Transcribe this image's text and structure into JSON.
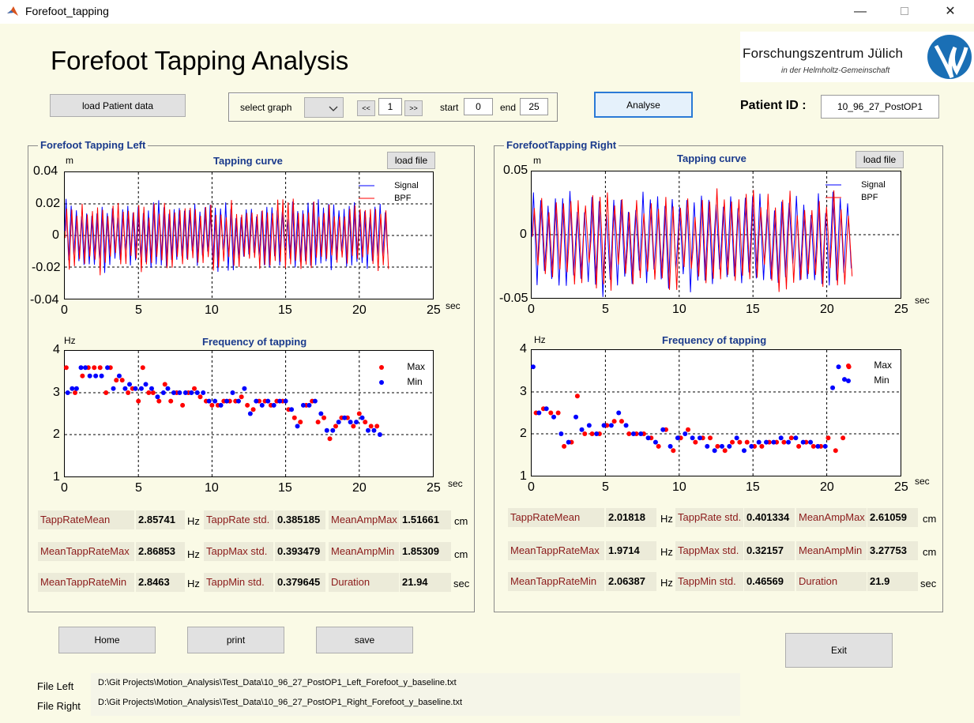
{
  "window": {
    "title": "Forefoot_tapping",
    "minimize_glyph": "—",
    "close_glyph": "✕"
  },
  "header": {
    "title": "Forefoot Tapping Analysis",
    "logo_line1": "Forschungszentrum Jülich",
    "logo_line2": "in der Helmholtz-Gemeinschaft"
  },
  "toolbar": {
    "load_patient": "load Patient data",
    "select_graph": "select graph",
    "prev": "<<",
    "page": "1",
    "next": ">>",
    "start_label": "start",
    "start_value": "0",
    "end_label": "end",
    "end_value": "25",
    "analyse": "Analyse",
    "patient_id_label": "Patient  ID :",
    "patient_id_value": "10_96_27_PostOP1"
  },
  "left": {
    "panel_title": "Forefoot Tapping Left",
    "load_file": "load file",
    "tapping_title": "Tapping curve",
    "tapping_unit": "m",
    "tapping_yticks": [
      "0.04",
      "0.02",
      "0",
      "-0.02",
      "-0.04"
    ],
    "xticks": [
      "0",
      "5",
      "10",
      "15",
      "20",
      "25"
    ],
    "x_unit": "sec",
    "legend_signal": "Signal",
    "legend_bpf": "BPF",
    "freq_title": "Frequency of tapping",
    "freq_unit": "Hz",
    "freq_yticks": [
      "4",
      "3",
      "2",
      "1"
    ],
    "legend_max": "Max",
    "legend_min": "Min",
    "stats": {
      "tapp_rate_mean_label": "TappRateMean",
      "tapp_rate_mean": "2.85741",
      "hz1": "Hz",
      "tapp_rate_std_label": "TappRate std.",
      "tapp_rate_std": "0.385185",
      "mean_amp_max_label": "MeanAmpMax",
      "mean_amp_max": "1.51661",
      "cm1": "cm",
      "mean_tapp_rate_max_label": "MeanTappRateMax",
      "mean_tapp_rate_max": "2.86853",
      "hz2": "Hz",
      "tapp_max_std_label": "TappMax std.",
      "tapp_max_std": "0.393479",
      "mean_amp_min_label": "MeanAmpMin",
      "mean_amp_min": "1.85309",
      "cm2": "cm",
      "mean_tapp_rate_min_label": "MeanTappRateMin",
      "mean_tapp_rate_min": "2.8463",
      "hz3": "Hz",
      "tapp_min_std_label": "TappMin std.",
      "tapp_min_std": "0.379645",
      "duration_label": "Duration",
      "duration": "21.94",
      "sec": "sec"
    }
  },
  "right": {
    "panel_title": "ForefootTapping Right",
    "load_file": "load file",
    "tapping_title": "Tapping curve",
    "tapping_unit": "m",
    "tapping_yticks": [
      "0.05",
      "0",
      "-0.05"
    ],
    "xticks": [
      "0",
      "5",
      "10",
      "15",
      "20",
      "25"
    ],
    "x_unit": "sec",
    "legend_signal": "Signal",
    "legend_bpf": "BPF",
    "freq_title": "Frequency of tapping",
    "freq_unit": "Hz",
    "freq_yticks": [
      "4",
      "3",
      "2",
      "1"
    ],
    "legend_max": "Max",
    "legend_min": "Min",
    "stats": {
      "tapp_rate_mean_label": "TappRateMean",
      "tapp_rate_mean": "2.01818",
      "hz1": "Hz",
      "tapp_rate_std_label": "TappRate std.",
      "tapp_rate_std": "0.401334",
      "mean_amp_max_label": "MeanAmpMax",
      "mean_amp_max": "2.61059",
      "cm1": "cm",
      "mean_tapp_rate_max_label": "MeanTappRateMax",
      "mean_tapp_rate_max": "1.9714",
      "hz2": "Hz",
      "tapp_max_std_label": "TappMax std.",
      "tapp_max_std": "0.32157",
      "mean_amp_min_label": "MeanAmpMin",
      "mean_amp_min": "3.27753",
      "cm2": "cm",
      "mean_tapp_rate_min_label": "MeanTappRateMin",
      "mean_tapp_rate_min": "2.06387",
      "hz3": "Hz",
      "tapp_min_std_label": "TappMin std.",
      "tapp_min_std": "0.46569",
      "duration_label": "Duration",
      "duration": "21.9",
      "sec": "sec"
    }
  },
  "footer": {
    "home": "Home",
    "print": "print",
    "save": "save",
    "exit": "Exit",
    "file_left_label": "File Left",
    "file_left_path": "D:\\Git Projects\\Motion_Analysis\\Test_Data\\10_96_27_PostOP1_Left_Forefoot_y_baseline.txt",
    "file_right_label": "File Right",
    "file_right_path": "D:\\Git Projects\\Motion_Analysis\\Test_Data\\10_96_27_PostOP1_Right_Forefoot_y_baseline.txt"
  },
  "chart_data": [
    {
      "type": "line",
      "ylabel": "m",
      "xlabel": "sec",
      "xlim": [
        0,
        25
      ],
      "ylim": [
        -0.04,
        0.04
      ],
      "grid": true,
      "legend": "top-right",
      "series": [
        {
          "name": "Signal",
          "color": "#0000ff",
          "x_end": 22,
          "amplitude": 0.017,
          "center": 0.0,
          "frequency_hz": 2.86
        },
        {
          "name": "BPF",
          "color": "#ff0000",
          "x_end": 22,
          "amplitude": 0.017,
          "center": 0.0,
          "frequency_hz": 2.86
        }
      ]
    },
    {
      "type": "line",
      "ylabel": "m",
      "xlabel": "sec",
      "xlim": [
        0,
        25
      ],
      "ylim": [
        -0.05,
        0.05
      ],
      "grid": true,
      "legend": "top-right",
      "series": [
        {
          "name": "Signal",
          "color": "#0000ff",
          "x_end": 22,
          "amplitude": 0.03,
          "center": -0.005,
          "frequency_hz": 2.02
        },
        {
          "name": "BPF",
          "color": "#ff0000",
          "x_end": 22,
          "amplitude": 0.03,
          "center": -0.005,
          "frequency_hz": 2.02
        }
      ]
    },
    {
      "type": "scatter",
      "ylabel": "Hz",
      "xlabel": "sec",
      "xlim": [
        0,
        25
      ],
      "ylim": [
        1,
        4
      ],
      "grid": true,
      "legend": "top-right",
      "series": [
        {
          "name": "Max",
          "color": "#ff0000",
          "x": [
            0.1,
            0.7,
            1.2,
            1.6,
            2.0,
            2.4,
            2.8,
            3.1,
            3.5,
            3.9,
            4.3,
            4.6,
            5.0,
            5.3,
            5.7,
            6.0,
            6.4,
            6.8,
            7.2,
            7.6,
            8.0,
            8.4,
            8.8,
            9.2,
            9.6,
            10.0,
            10.4,
            10.8,
            11.2,
            11.6,
            12.0,
            12.4,
            12.8,
            13.2,
            13.6,
            14.0,
            14.4,
            14.8,
            15.2,
            15.6,
            16.0,
            16.4,
            16.8,
            17.2,
            17.6,
            18.0,
            18.4,
            18.8,
            19.2,
            19.6,
            20.0,
            20.4,
            20.8,
            21.2
          ],
          "y": [
            3.6,
            3.0,
            3.4,
            3.6,
            3.6,
            3.6,
            3.0,
            3.6,
            3.3,
            3.3,
            3.0,
            3.1,
            2.8,
            3.6,
            3.0,
            3.0,
            2.8,
            3.2,
            2.8,
            3.0,
            2.7,
            3.0,
            3.1,
            2.9,
            2.8,
            2.7,
            2.7,
            2.8,
            2.8,
            2.8,
            2.9,
            2.7,
            2.6,
            2.8,
            2.8,
            2.7,
            2.8,
            2.8,
            2.6,
            2.4,
            2.3,
            2.7,
            2.8,
            2.3,
            2.4,
            1.9,
            2.2,
            2.4,
            2.4,
            2.2,
            2.5,
            2.3,
            2.2,
            2.2
          ]
        },
        {
          "name": "Min",
          "color": "#0000ff",
          "x": [
            0.2,
            0.5,
            0.8,
            1.1,
            1.4,
            1.7,
            2.1,
            2.5,
            2.9,
            3.3,
            3.7,
            4.1,
            4.4,
            4.8,
            5.2,
            5.5,
            5.9,
            6.3,
            6.7,
            7.0,
            7.4,
            7.8,
            8.2,
            8.6,
            9.0,
            9.4,
            9.8,
            10.2,
            10.6,
            11.0,
            11.4,
            11.8,
            12.2,
            12.6,
            13.0,
            13.4,
            13.8,
            14.2,
            14.6,
            15.0,
            15.4,
            15.8,
            16.2,
            16.6,
            17.0,
            17.4,
            17.8,
            18.2,
            18.6,
            19.0,
            19.4,
            19.8,
            20.2,
            20.6,
            21.0,
            21.4
          ],
          "y": [
            3.0,
            3.1,
            3.1,
            3.6,
            3.6,
            3.4,
            3.4,
            3.4,
            3.6,
            3.1,
            3.4,
            3.1,
            3.2,
            3.1,
            3.1,
            3.2,
            3.1,
            2.9,
            3.0,
            3.1,
            3.0,
            3.0,
            3.0,
            3.0,
            3.0,
            3.0,
            2.8,
            2.8,
            2.7,
            2.8,
            3.0,
            2.8,
            3.1,
            2.5,
            2.8,
            2.7,
            2.8,
            2.7,
            2.8,
            2.8,
            2.6,
            2.2,
            2.7,
            2.7,
            2.8,
            2.5,
            2.1,
            2.1,
            2.3,
            2.4,
            2.3,
            2.3,
            2.4,
            2.1,
            2.1,
            2.0
          ]
        }
      ]
    },
    {
      "type": "scatter",
      "ylabel": "Hz",
      "xlabel": "sec",
      "xlim": [
        0,
        25
      ],
      "ylim": [
        1,
        4
      ],
      "grid": true,
      "legend": "top-right",
      "series": [
        {
          "name": "Max",
          "color": "#ff0000",
          "x": [
            0.3,
            0.8,
            1.3,
            1.8,
            2.2,
            2.7,
            3.1,
            3.6,
            4.1,
            4.6,
            5.1,
            5.6,
            6.1,
            6.6,
            7.1,
            7.6,
            8.1,
            8.6,
            9.1,
            9.6,
            10.1,
            10.6,
            11.1,
            11.6,
            12.1,
            12.6,
            13.1,
            13.6,
            14.1,
            14.6,
            15.1,
            15.6,
            16.1,
            16.6,
            17.1,
            17.6,
            18.1,
            18.6,
            19.1,
            19.6,
            20.1,
            20.6,
            21.1,
            21.5
          ],
          "y": [
            2.5,
            2.6,
            2.5,
            2.5,
            1.7,
            1.8,
            2.9,
            2.0,
            2.0,
            2.0,
            2.2,
            2.3,
            2.3,
            2.0,
            2.0,
            2.0,
            1.9,
            1.7,
            2.1,
            1.6,
            1.9,
            2.1,
            1.8,
            1.9,
            1.9,
            1.7,
            1.6,
            1.8,
            1.8,
            1.8,
            1.7,
            1.7,
            1.8,
            1.8,
            1.8,
            1.9,
            1.7,
            1.8,
            1.7,
            1.7,
            1.9,
            1.6,
            1.9,
            3.6
          ]
        },
        {
          "name": "Min",
          "color": "#0000ff",
          "x": [
            0.1,
            0.5,
            1.0,
            1.5,
            2.0,
            2.5,
            3.0,
            3.4,
            3.9,
            4.4,
            4.9,
            5.4,
            5.9,
            6.4,
            6.9,
            7.4,
            7.9,
            8.4,
            8.9,
            9.4,
            9.9,
            10.4,
            10.9,
            11.4,
            11.9,
            12.4,
            12.9,
            13.4,
            13.9,
            14.4,
            14.9,
            15.4,
            15.9,
            16.4,
            16.9,
            17.4,
            17.9,
            18.4,
            18.9,
            19.4,
            19.9,
            20.4,
            20.8,
            21.2
          ],
          "y": [
            3.6,
            2.5,
            2.6,
            2.4,
            2.0,
            1.8,
            2.4,
            2.1,
            2.2,
            2.0,
            2.2,
            2.2,
            2.5,
            2.2,
            2.0,
            2.0,
            1.9,
            1.8,
            2.1,
            1.7,
            1.9,
            2.0,
            1.9,
            1.9,
            1.7,
            1.6,
            1.7,
            1.7,
            1.9,
            1.6,
            1.7,
            1.8,
            1.8,
            1.8,
            1.9,
            1.8,
            1.9,
            1.8,
            1.8,
            1.7,
            1.7,
            3.1,
            3.6,
            3.3
          ]
        }
      ]
    }
  ]
}
